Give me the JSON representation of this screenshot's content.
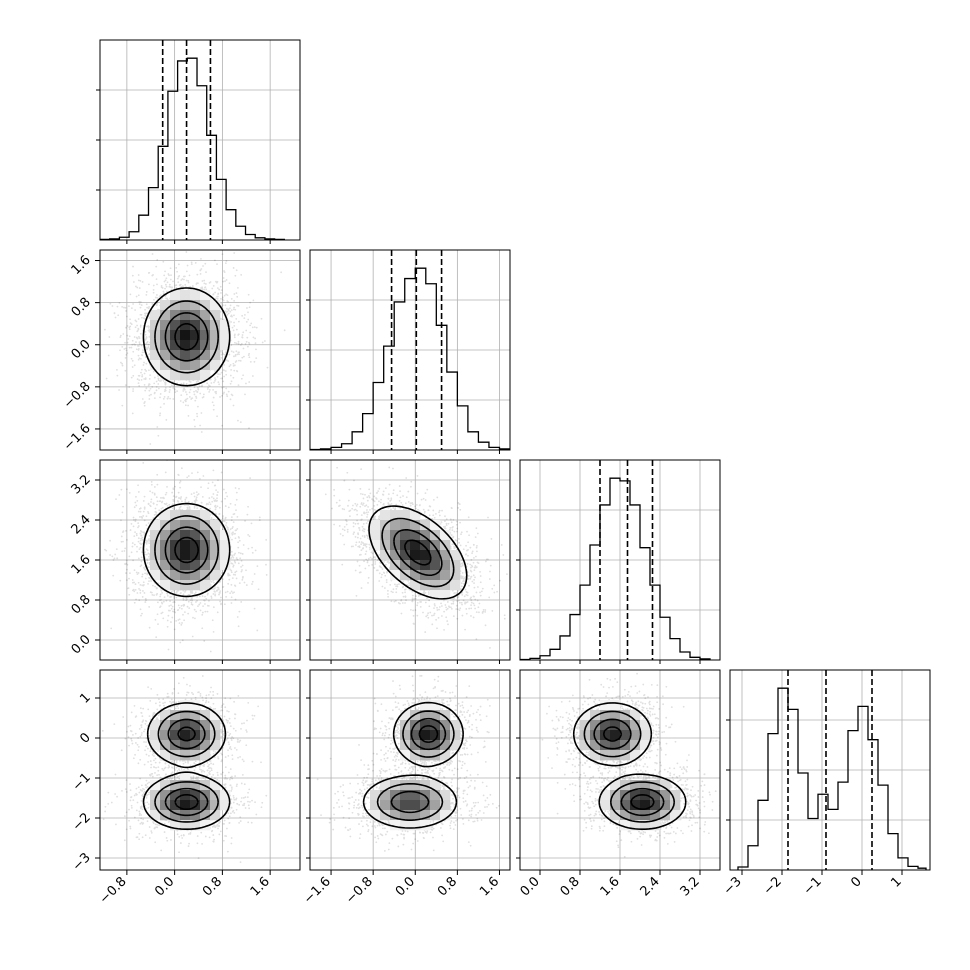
{
  "chart_data": {
    "type": "corner",
    "grid": true,
    "parameters": [
      {
        "index": 0,
        "range": [
          -1.25,
          2.1
        ],
        "ticks": [
          -0.8,
          0.0,
          0.8,
          1.6
        ],
        "tick_labels": [
          "−0.8",
          "0.0",
          "0.8",
          "1.6"
        ],
        "quantiles": [
          -0.2,
          0.2,
          0.6
        ]
      },
      {
        "index": 1,
        "range": [
          -2.0,
          1.8
        ],
        "ticks": [
          -1.6,
          -0.8,
          0.0,
          0.8,
          1.6
        ],
        "tick_labels": [
          "−1.6",
          "−0.8",
          "0.0",
          "0.8",
          "1.6"
        ],
        "quantiles": [
          -0.45,
          0.02,
          0.5
        ]
      },
      {
        "index": 2,
        "range": [
          -0.4,
          3.6
        ],
        "ticks": [
          0.0,
          0.8,
          1.6,
          2.4,
          3.2
        ],
        "tick_labels": [
          "0.0",
          "0.8",
          "1.6",
          "2.4",
          "3.2"
        ],
        "quantiles": [
          1.2,
          1.75,
          2.25
        ]
      },
      {
        "index": 3,
        "range": [
          -3.3,
          1.7
        ],
        "ticks": [
          -3,
          -2,
          -1,
          0,
          1
        ],
        "tick_labels": [
          "−3",
          "−2",
          "−1",
          "0",
          "1"
        ],
        "quantiles": [
          -1.85,
          -0.9,
          0.25
        ]
      }
    ],
    "marginals": [
      {
        "param": 0,
        "edges": [
          -1.25,
          -1.0875,
          -0.925,
          -0.7625,
          -0.6,
          -0.4375,
          -0.275,
          -0.1125,
          0.05,
          0.2125,
          0.375,
          0.5375,
          0.7,
          0.8625,
          1.025,
          1.1875,
          1.35,
          1.5125,
          1.675,
          1.8375
        ],
        "counts": [
          1,
          2,
          5,
          15,
          45,
          95,
          170,
          270,
          325,
          330,
          280,
          190,
          110,
          55,
          25,
          10,
          4,
          2,
          1
        ]
      },
      {
        "param": 1,
        "edges": [
          -2.0,
          -1.8,
          -1.6,
          -1.4,
          -1.2,
          -1.0,
          -0.8,
          -0.6,
          -0.4,
          -0.2,
          0.0,
          0.2,
          0.4,
          0.6,
          0.8,
          1.0,
          1.2,
          1.4,
          1.6,
          1.8
        ],
        "counts": [
          1,
          2,
          5,
          12,
          35,
          70,
          130,
          200,
          285,
          330,
          350,
          320,
          240,
          150,
          85,
          35,
          15,
          5,
          2
        ]
      },
      {
        "param": 2,
        "edges": [
          -0.4,
          -0.2,
          0.0,
          0.2,
          0.4,
          0.6,
          0.8,
          1.0,
          1.2,
          1.4,
          1.6,
          1.8,
          2.0,
          2.2,
          2.4,
          2.6,
          2.8,
          3.0,
          3.2,
          3.4
        ],
        "counts": [
          1,
          3,
          8,
          20,
          45,
          85,
          140,
          215,
          290,
          340,
          335,
          290,
          210,
          140,
          80,
          40,
          15,
          5,
          2
        ]
      },
      {
        "param": 3,
        "edges": [
          -3.1,
          -2.85,
          -2.6,
          -2.35,
          -2.1,
          -1.85,
          -1.6,
          -1.35,
          -1.1,
          -0.85,
          -0.6,
          -0.35,
          -0.1,
          0.15,
          0.4,
          0.65,
          0.9,
          1.15,
          1.4,
          1.6
        ],
        "counts": [
          5,
          40,
          115,
          225,
          300,
          265,
          160,
          85,
          125,
          100,
          145,
          230,
          270,
          215,
          140,
          60,
          20,
          6,
          3
        ]
      }
    ],
    "joint_modes": [
      {
        "x_param": 0,
        "y_param": 1,
        "modes": [
          {
            "mx": 0.2,
            "my": 0.15,
            "sx": 0.35,
            "sy": 0.45,
            "rho": 0.0,
            "w": 1.0
          }
        ]
      },
      {
        "x_param": 0,
        "y_param": 2,
        "modes": [
          {
            "mx": 0.2,
            "my": 1.8,
            "sx": 0.35,
            "sy": 0.45,
            "rho": 0.0,
            "w": 1.0
          }
        ]
      },
      {
        "x_param": 1,
        "y_param": 2,
        "modes": [
          {
            "mx": 0.05,
            "my": 1.75,
            "sx": 0.45,
            "sy": 0.45,
            "rho": -0.5,
            "w": 1.0
          }
        ]
      },
      {
        "x_param": 0,
        "y_param": 3,
        "modes": [
          {
            "mx": 0.2,
            "my": 0.1,
            "sx": 0.32,
            "sy": 0.38,
            "rho": 0.0,
            "w": 0.5
          },
          {
            "mx": 0.2,
            "my": -1.6,
            "sx": 0.35,
            "sy": 0.33,
            "rho": 0.0,
            "w": 0.5
          }
        ]
      },
      {
        "x_param": 1,
        "y_param": 3,
        "modes": [
          {
            "mx": 0.25,
            "my": 0.1,
            "sx": 0.32,
            "sy": 0.38,
            "rho": 0.0,
            "w": 0.5
          },
          {
            "mx": -0.1,
            "my": -1.6,
            "sx": 0.45,
            "sy": 0.33,
            "rho": 0.0,
            "w": 0.5
          }
        ]
      },
      {
        "x_param": 2,
        "y_param": 3,
        "modes": [
          {
            "mx": 1.45,
            "my": 0.1,
            "sx": 0.38,
            "sy": 0.38,
            "rho": 0.0,
            "w": 0.5
          },
          {
            "mx": 2.05,
            "my": -1.6,
            "sx": 0.42,
            "sy": 0.33,
            "rho": 0.0,
            "w": 0.5
          }
        ]
      }
    ]
  }
}
